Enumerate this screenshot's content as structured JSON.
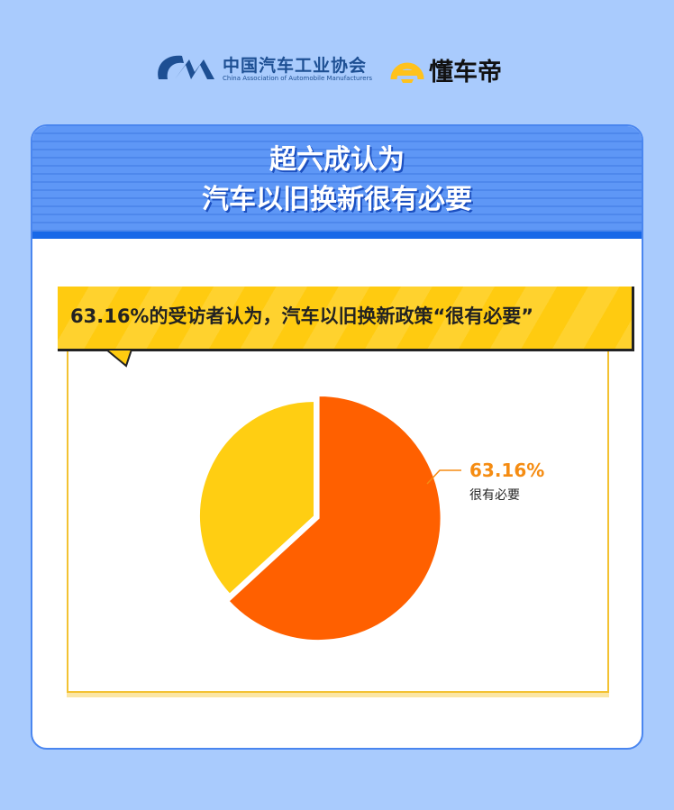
{
  "logos": {
    "caam_cn": "中国汽车工业协会",
    "caam_en": "China Association of Automobile Manufacturers",
    "dongchedi": "懂车帝"
  },
  "header": {
    "line1": "超六成认为",
    "line2": "汽车以旧换新很有必要"
  },
  "banner": "63.16%的受访者认为，汽车以旧换新政策“很有必要”",
  "chart_data": {
    "type": "pie",
    "slices": [
      {
        "label": "很有必要",
        "value": 63.16,
        "display": "63.16%",
        "color": "#ff6000"
      },
      {
        "value": 36.84,
        "color": "#ffce12"
      }
    ]
  }
}
